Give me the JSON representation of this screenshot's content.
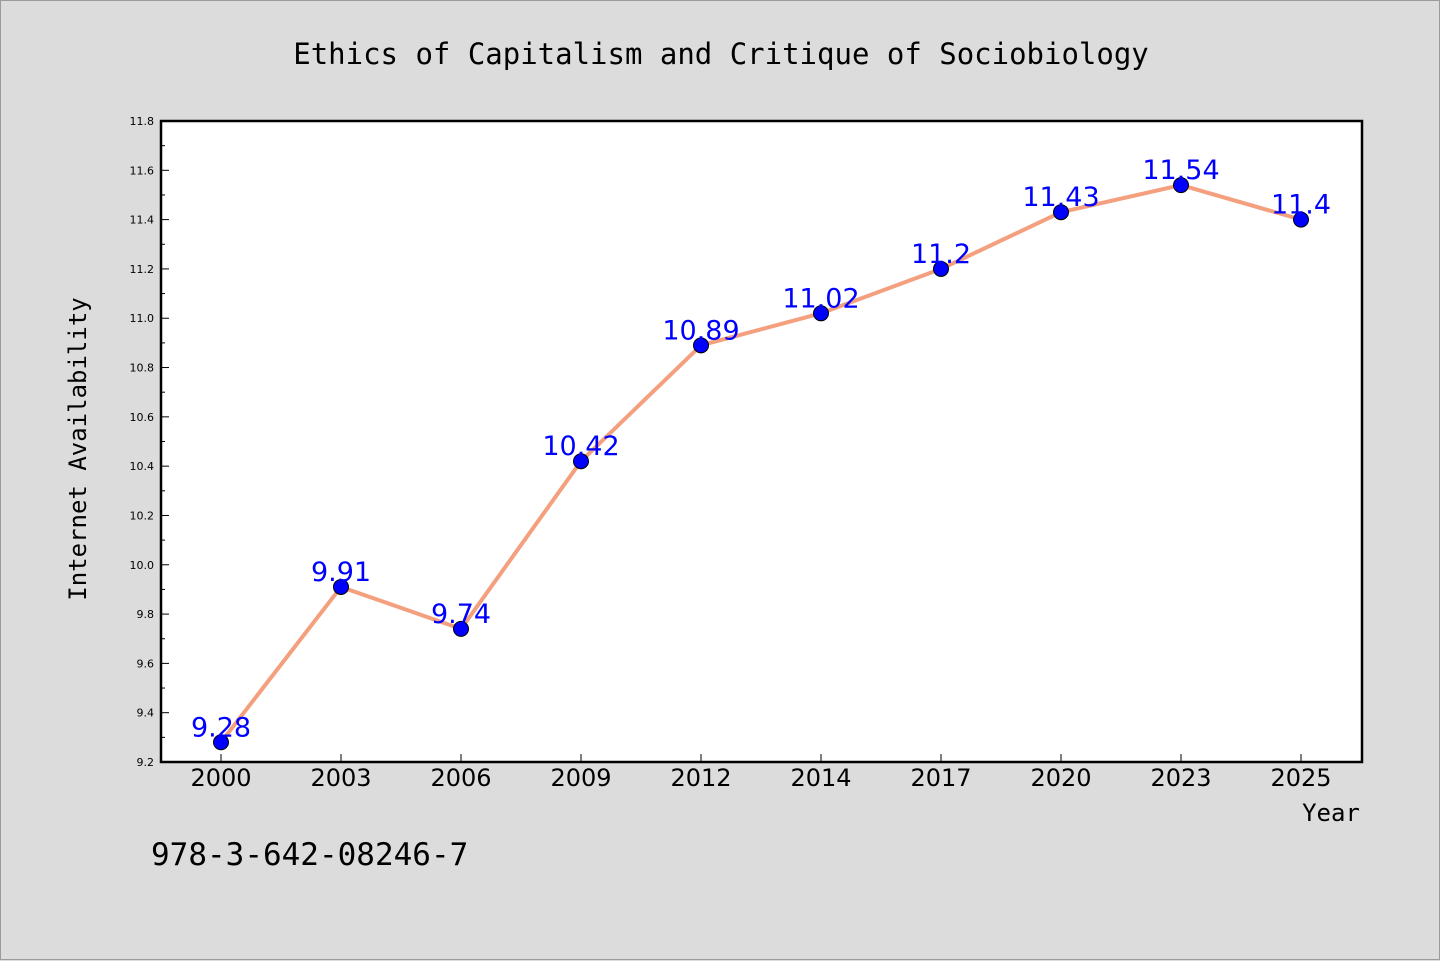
{
  "chart_data": {
    "type": "line",
    "title": "Ethics of Capitalism and Critique of Sociobiology",
    "xlabel": "Year",
    "ylabel": "Internet Availability",
    "categories": [
      "2000",
      "2003",
      "2006",
      "2009",
      "2012",
      "2014",
      "2017",
      "2020",
      "2023",
      "2025"
    ],
    "series": [
      {
        "values": [
          9.28,
          9.91,
          9.74,
          10.42,
          10.89,
          11.02,
          11.2,
          11.43,
          11.54,
          11.4
        ],
        "labels": [
          "9.28",
          "9.91",
          "9.74",
          "10.42",
          "10.89",
          "11.02",
          "11.2",
          "11.43",
          "11.54",
          "11.4"
        ],
        "line_color": "#f4a07f",
        "marker_color": "#0000ff"
      }
    ],
    "ylim": [
      9.2,
      11.8
    ],
    "yticks": [
      "9.2",
      "9.4",
      "9.6",
      "9.8",
      "10.0",
      "10.2",
      "10.4",
      "10.6",
      "10.8",
      "11.0",
      "11.2",
      "11.4",
      "11.6",
      "11.8"
    ],
    "grid": false,
    "legend": "none"
  },
  "footer": {
    "isbn": "978-3-642-08246-7"
  },
  "colors": {
    "background": "#dcdcdc",
    "plot_background": "#ffffff",
    "data_label": "#0000ff"
  }
}
